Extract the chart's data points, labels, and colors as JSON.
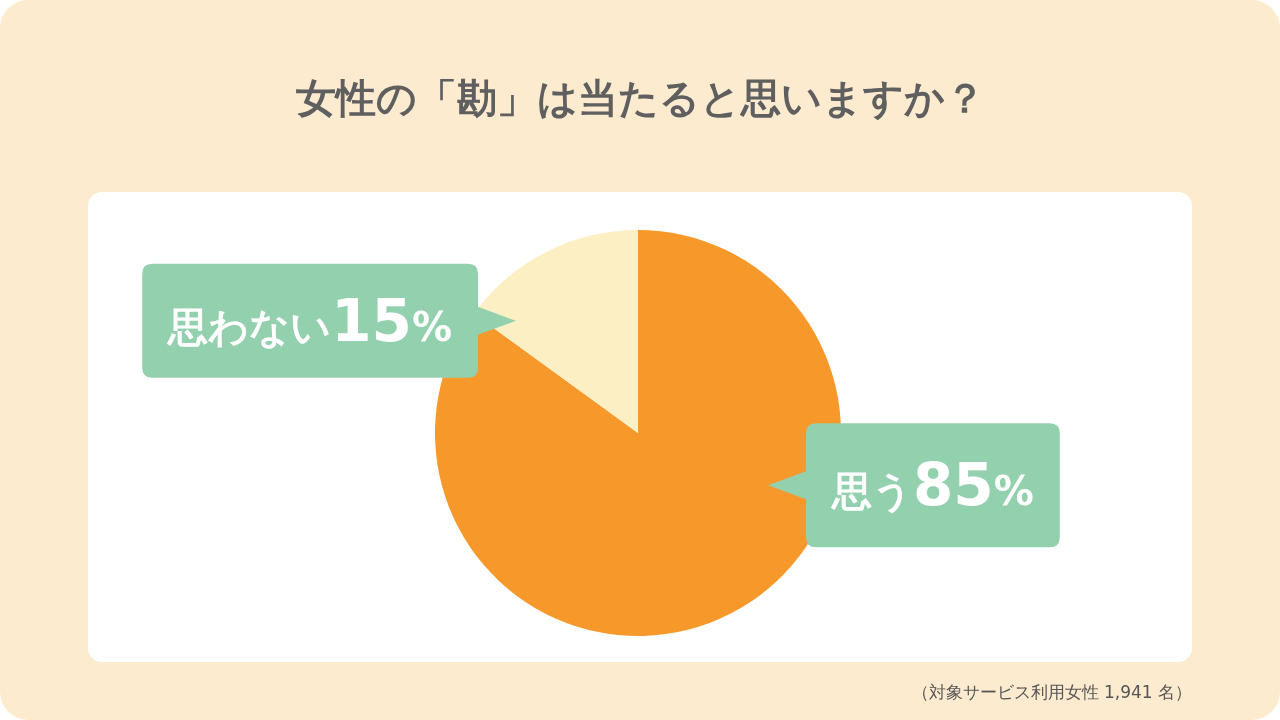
{
  "chart_data": {
    "type": "pie",
    "title": "女性の「勘」は当たると思いますか？",
    "categories": [
      "思う",
      "思わない"
    ],
    "values": [
      85,
      15
    ],
    "colors": [
      "#f7982a",
      "#fdefc4"
    ],
    "value_labels": [
      "85%",
      "15%"
    ],
    "annotations": [
      "（対象サービス利用女性 1,941 名）"
    ]
  }
}
